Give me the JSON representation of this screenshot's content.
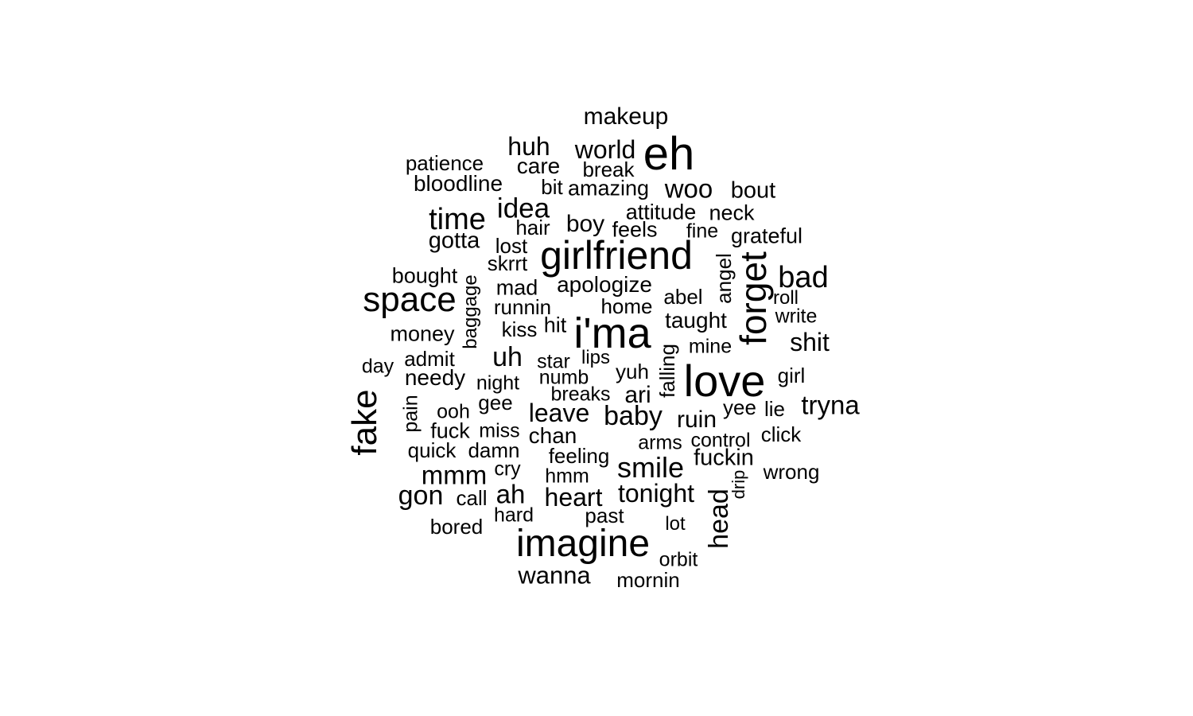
{
  "words": [
    {
      "text": "makeup",
      "rotated": false
    },
    {
      "text": "huh",
      "rotated": false
    },
    {
      "text": "world",
      "rotated": false
    },
    {
      "text": "eh",
      "rotated": false
    },
    {
      "text": "patience",
      "rotated": false
    },
    {
      "text": "care",
      "rotated": false
    },
    {
      "text": "break",
      "rotated": false
    },
    {
      "text": "bloodline",
      "rotated": false
    },
    {
      "text": "bit",
      "rotated": false
    },
    {
      "text": "amazing",
      "rotated": false
    },
    {
      "text": "woo",
      "rotated": false
    },
    {
      "text": "bout",
      "rotated": false
    },
    {
      "text": "idea",
      "rotated": false
    },
    {
      "text": "time",
      "rotated": false
    },
    {
      "text": "attitude",
      "rotated": false
    },
    {
      "text": "neck",
      "rotated": false
    },
    {
      "text": "boy",
      "rotated": false
    },
    {
      "text": "hair",
      "rotated": false
    },
    {
      "text": "feels",
      "rotated": false
    },
    {
      "text": "fine",
      "rotated": false
    },
    {
      "text": "grateful",
      "rotated": false
    },
    {
      "text": "gotta",
      "rotated": false
    },
    {
      "text": "lost",
      "rotated": false
    },
    {
      "text": "girlfriend",
      "rotated": false
    },
    {
      "text": "skrrt",
      "rotated": false
    },
    {
      "text": "angel",
      "rotated": true
    },
    {
      "text": "forget",
      "rotated": true
    },
    {
      "text": "bad",
      "rotated": false
    },
    {
      "text": "bought",
      "rotated": false
    },
    {
      "text": "baggage",
      "rotated": true
    },
    {
      "text": "mad",
      "rotated": false
    },
    {
      "text": "apologize",
      "rotated": false
    },
    {
      "text": "space",
      "rotated": false
    },
    {
      "text": "abel",
      "rotated": false
    },
    {
      "text": "roll",
      "rotated": false
    },
    {
      "text": "runnin",
      "rotated": false
    },
    {
      "text": "home",
      "rotated": false
    },
    {
      "text": "write",
      "rotated": false
    },
    {
      "text": "taught",
      "rotated": false
    },
    {
      "text": "money",
      "rotated": false
    },
    {
      "text": "kiss",
      "rotated": false
    },
    {
      "text": "hit",
      "rotated": false
    },
    {
      "text": "i'ma",
      "rotated": false
    },
    {
      "text": "shit",
      "rotated": false
    },
    {
      "text": "mine",
      "rotated": false
    },
    {
      "text": "admit",
      "rotated": false
    },
    {
      "text": "uh",
      "rotated": false
    },
    {
      "text": "lips",
      "rotated": false
    },
    {
      "text": "falling",
      "rotated": true
    },
    {
      "text": "day",
      "rotated": false
    },
    {
      "text": "star",
      "rotated": false
    },
    {
      "text": "girl",
      "rotated": false
    },
    {
      "text": "needy",
      "rotated": false
    },
    {
      "text": "yuh",
      "rotated": false
    },
    {
      "text": "love",
      "rotated": false
    },
    {
      "text": "night",
      "rotated": false
    },
    {
      "text": "numb",
      "rotated": false
    },
    {
      "text": "fake",
      "rotated": true
    },
    {
      "text": "breaks",
      "rotated": false
    },
    {
      "text": "ari",
      "rotated": false
    },
    {
      "text": "gee",
      "rotated": false
    },
    {
      "text": "tryna",
      "rotated": false
    },
    {
      "text": "pain",
      "rotated": true
    },
    {
      "text": "ooh",
      "rotated": false
    },
    {
      "text": "yee",
      "rotated": false
    },
    {
      "text": "lie",
      "rotated": false
    },
    {
      "text": "leave",
      "rotated": false
    },
    {
      "text": "baby",
      "rotated": false
    },
    {
      "text": "ruin",
      "rotated": false
    },
    {
      "text": "fuck",
      "rotated": false
    },
    {
      "text": "miss",
      "rotated": false
    },
    {
      "text": "click",
      "rotated": false
    },
    {
      "text": "chan",
      "rotated": false
    },
    {
      "text": "arms",
      "rotated": false
    },
    {
      "text": "control",
      "rotated": false
    },
    {
      "text": "quick",
      "rotated": false
    },
    {
      "text": "damn",
      "rotated": false
    },
    {
      "text": "feeling",
      "rotated": false
    },
    {
      "text": "fuckin",
      "rotated": false
    },
    {
      "text": "cry",
      "rotated": false
    },
    {
      "text": "smile",
      "rotated": false
    },
    {
      "text": "mmm",
      "rotated": false
    },
    {
      "text": "hmm",
      "rotated": false
    },
    {
      "text": "drip",
      "rotated": true
    },
    {
      "text": "wrong",
      "rotated": false
    },
    {
      "text": "tonight",
      "rotated": false
    },
    {
      "text": "gon",
      "rotated": false
    },
    {
      "text": "call",
      "rotated": false
    },
    {
      "text": "ah",
      "rotated": false
    },
    {
      "text": "heart",
      "rotated": false
    },
    {
      "text": "head",
      "rotated": true
    },
    {
      "text": "hard",
      "rotated": false
    },
    {
      "text": "past",
      "rotated": false
    },
    {
      "text": "bored",
      "rotated": false
    },
    {
      "text": "lot",
      "rotated": false
    },
    {
      "text": "imagine",
      "rotated": false
    },
    {
      "text": "orbit",
      "rotated": false
    },
    {
      "text": "wanna",
      "rotated": false
    },
    {
      "text": "mornin",
      "rotated": false
    }
  ]
}
